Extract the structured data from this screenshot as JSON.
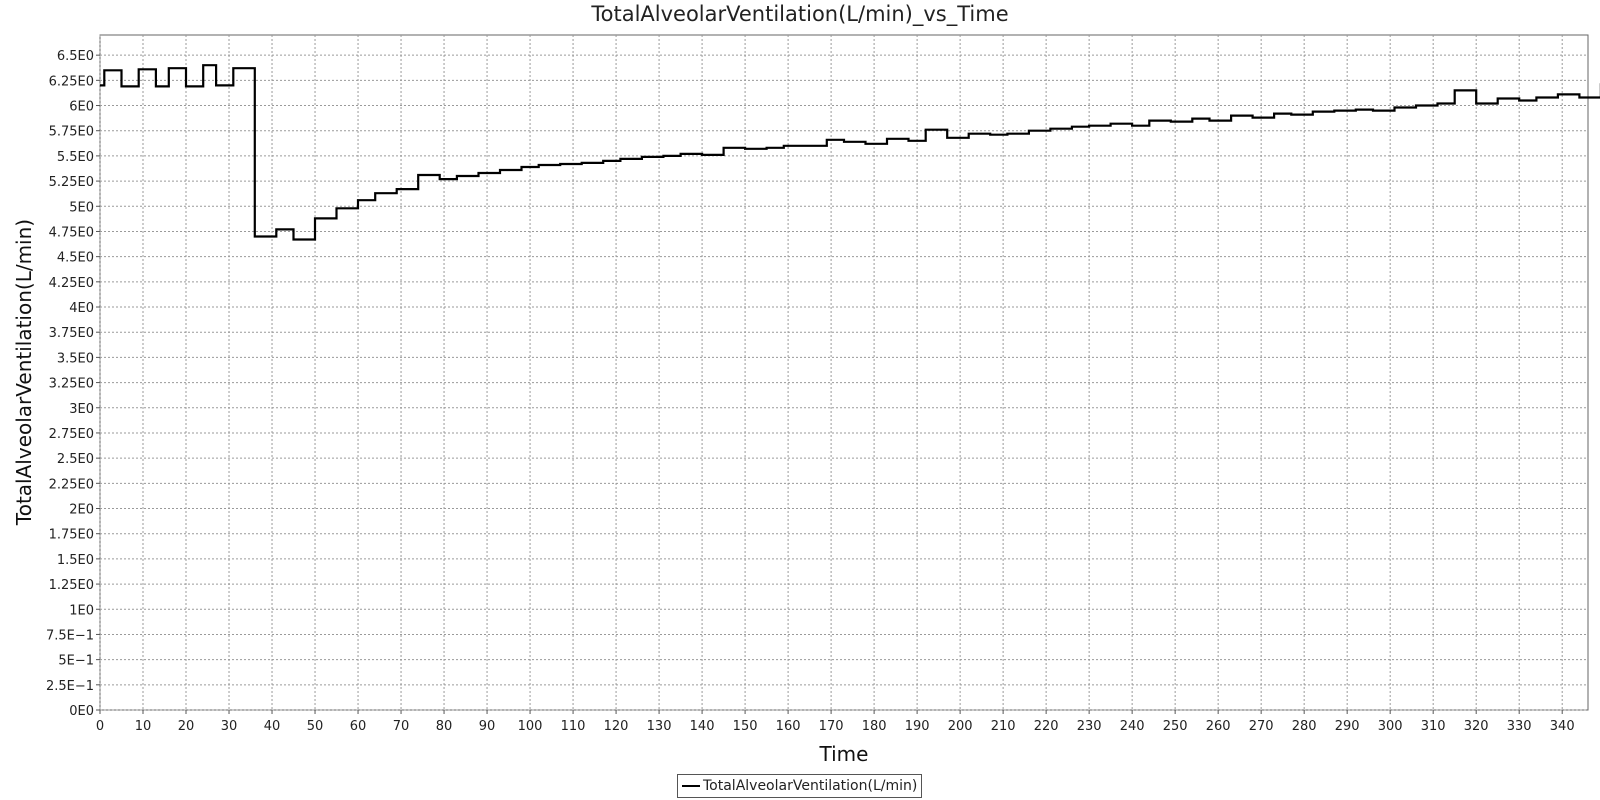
{
  "chart_data": {
    "type": "line",
    "title": "TotalAlveolarVentilation(L/min)_vs_Time",
    "xlabel": "Time",
    "ylabel": "TotalAlveolarVentilation(L/min)",
    "xlim": [
      0,
      346
    ],
    "ylim": [
      0,
      6.7
    ],
    "x_ticks": [
      0,
      10,
      20,
      30,
      40,
      50,
      60,
      70,
      80,
      90,
      100,
      110,
      120,
      130,
      140,
      150,
      160,
      170,
      180,
      190,
      200,
      210,
      220,
      230,
      240,
      250,
      260,
      270,
      280,
      290,
      300,
      310,
      320,
      330,
      340
    ],
    "y_ticks": [
      {
        "v": 0,
        "label": "0E0"
      },
      {
        "v": 0.25,
        "label": "2.5E−1"
      },
      {
        "v": 0.5,
        "label": "5E−1"
      },
      {
        "v": 0.75,
        "label": "7.5E−1"
      },
      {
        "v": 1.0,
        "label": "1E0"
      },
      {
        "v": 1.25,
        "label": "1.25E0"
      },
      {
        "v": 1.5,
        "label": "1.5E0"
      },
      {
        "v": 1.75,
        "label": "1.75E0"
      },
      {
        "v": 2.0,
        "label": "2E0"
      },
      {
        "v": 2.25,
        "label": "2.25E0"
      },
      {
        "v": 2.5,
        "label": "2.5E0"
      },
      {
        "v": 2.75,
        "label": "2.75E0"
      },
      {
        "v": 3.0,
        "label": "3E0"
      },
      {
        "v": 3.25,
        "label": "3.25E0"
      },
      {
        "v": 3.5,
        "label": "3.5E0"
      },
      {
        "v": 3.75,
        "label": "3.75E0"
      },
      {
        "v": 4.0,
        "label": "4E0"
      },
      {
        "v": 4.25,
        "label": "4.25E0"
      },
      {
        "v": 4.5,
        "label": "4.5E0"
      },
      {
        "v": 4.75,
        "label": "4.75E0"
      },
      {
        "v": 5.0,
        "label": "5E0"
      },
      {
        "v": 5.25,
        "label": "5.25E0"
      },
      {
        "v": 5.5,
        "label": "5.5E0"
      },
      {
        "v": 5.75,
        "label": "5.75E0"
      },
      {
        "v": 6.0,
        "label": "6E0"
      },
      {
        "v": 6.25,
        "label": "6.25E0"
      },
      {
        "v": 6.5,
        "label": "6.5E0"
      }
    ],
    "grid": true,
    "legend_position": "bottom-center",
    "series": [
      {
        "name": "TotalAlveolarVentilation(L/min)",
        "color": "#000000",
        "step": true,
        "points": [
          [
            0,
            6.2
          ],
          [
            1,
            6.35
          ],
          [
            5,
            6.19
          ],
          [
            9,
            6.36
          ],
          [
            13,
            6.19
          ],
          [
            16,
            6.37
          ],
          [
            20,
            6.19
          ],
          [
            24,
            6.4
          ],
          [
            27,
            6.2
          ],
          [
            31,
            6.37
          ],
          [
            36,
            4.7
          ],
          [
            41,
            4.77
          ],
          [
            45,
            4.67
          ],
          [
            50,
            4.88
          ],
          [
            55,
            4.98
          ],
          [
            60,
            5.06
          ],
          [
            64,
            5.13
          ],
          [
            69,
            5.17
          ],
          [
            74,
            5.31
          ],
          [
            79,
            5.27
          ],
          [
            83,
            5.3
          ],
          [
            88,
            5.33
          ],
          [
            93,
            5.36
          ],
          [
            98,
            5.39
          ],
          [
            102,
            5.41
          ],
          [
            107,
            5.42
          ],
          [
            112,
            5.43
          ],
          [
            117,
            5.45
          ],
          [
            121,
            5.47
          ],
          [
            126,
            5.49
          ],
          [
            131,
            5.5
          ],
          [
            135,
            5.52
          ],
          [
            140,
            5.51
          ],
          [
            145,
            5.58
          ],
          [
            150,
            5.57
          ],
          [
            155,
            5.58
          ],
          [
            159,
            5.6
          ],
          [
            164,
            5.6
          ],
          [
            169,
            5.66
          ],
          [
            173,
            5.64
          ],
          [
            178,
            5.62
          ],
          [
            183,
            5.67
          ],
          [
            188,
            5.65
          ],
          [
            192,
            5.76
          ],
          [
            197,
            5.68
          ],
          [
            202,
            5.72
          ],
          [
            207,
            5.71
          ],
          [
            211,
            5.72
          ],
          [
            216,
            5.75
          ],
          [
            221,
            5.77
          ],
          [
            226,
            5.79
          ],
          [
            230,
            5.8
          ],
          [
            235,
            5.82
          ],
          [
            240,
            5.8
          ],
          [
            244,
            5.85
          ],
          [
            249,
            5.84
          ],
          [
            254,
            5.87
          ],
          [
            258,
            5.85
          ],
          [
            263,
            5.9
          ],
          [
            268,
            5.88
          ],
          [
            273,
            5.92
          ],
          [
            277,
            5.91
          ],
          [
            282,
            5.94
          ],
          [
            287,
            5.95
          ],
          [
            292,
            5.96
          ],
          [
            296,
            5.95
          ],
          [
            301,
            5.98
          ],
          [
            306,
            6.0
          ],
          [
            311,
            6.02
          ],
          [
            315,
            6.15
          ],
          [
            320,
            6.02
          ],
          [
            325,
            6.07
          ],
          [
            330,
            6.05
          ],
          [
            334,
            6.08
          ],
          [
            339,
            6.11
          ],
          [
            344,
            6.08
          ],
          [
            349,
            6.21
          ],
          [
            353,
            6.09
          ],
          [
            354,
            6.09
          ]
        ]
      }
    ]
  },
  "legend": {
    "label": "TotalAlveolarVentilation(L/min)"
  }
}
